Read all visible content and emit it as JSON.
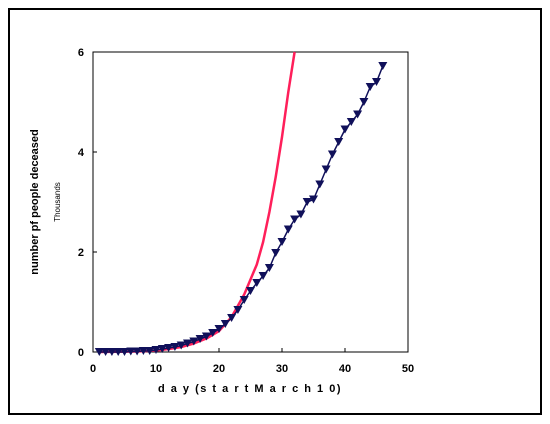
{
  "chart_data": {
    "type": "line",
    "xlabel": "d a y  (s t a r t  M a r c h  1 0)",
    "ylabel": "number pf people deceased",
    "yunit": "Thousands",
    "xlim": [
      0,
      50
    ],
    "ylim": [
      0,
      6
    ],
    "xticks": [
      "0",
      "10",
      "20",
      "30",
      "40",
      "50"
    ],
    "yticks": [
      "0",
      "2",
      "4",
      "6"
    ],
    "grid": false,
    "legend": "none",
    "series": [
      {
        "color": "#ff1f5a",
        "marker": "none",
        "x": [
          1,
          4,
          7,
          10,
          12,
          14,
          16,
          18,
          20,
          22,
          24,
          26,
          27,
          28,
          29,
          30,
          31,
          32
        ],
        "y": [
          0,
          0.005,
          0.01,
          0.03,
          0.06,
          0.1,
          0.17,
          0.27,
          0.42,
          0.7,
          1.15,
          1.75,
          2.2,
          2.8,
          3.5,
          4.3,
          5.2,
          6.0
        ]
      },
      {
        "color": "#10105a",
        "marker": "triangle-down",
        "x": [
          1,
          2,
          3,
          4,
          5,
          6,
          7,
          8,
          9,
          10,
          11,
          12,
          13,
          14,
          15,
          16,
          17,
          18,
          19,
          20,
          21,
          22,
          23,
          24,
          25,
          26,
          27,
          28,
          29,
          30,
          31,
          32,
          33,
          34,
          35,
          36,
          37,
          38,
          39,
          40,
          41,
          42,
          43,
          44,
          45,
          46
        ],
        "y": [
          0,
          0,
          0,
          0,
          0,
          0.01,
          0.01,
          0.02,
          0.02,
          0.04,
          0.06,
          0.08,
          0.1,
          0.13,
          0.17,
          0.21,
          0.26,
          0.31,
          0.38,
          0.46,
          0.56,
          0.68,
          0.84,
          1.04,
          1.22,
          1.38,
          1.52,
          1.68,
          1.98,
          2.2,
          2.45,
          2.65,
          2.75,
          3.0,
          3.05,
          3.35,
          3.65,
          3.95,
          4.2,
          4.45,
          4.6,
          4.75,
          5.0,
          5.3,
          5.4,
          5.72
        ]
      }
    ]
  }
}
